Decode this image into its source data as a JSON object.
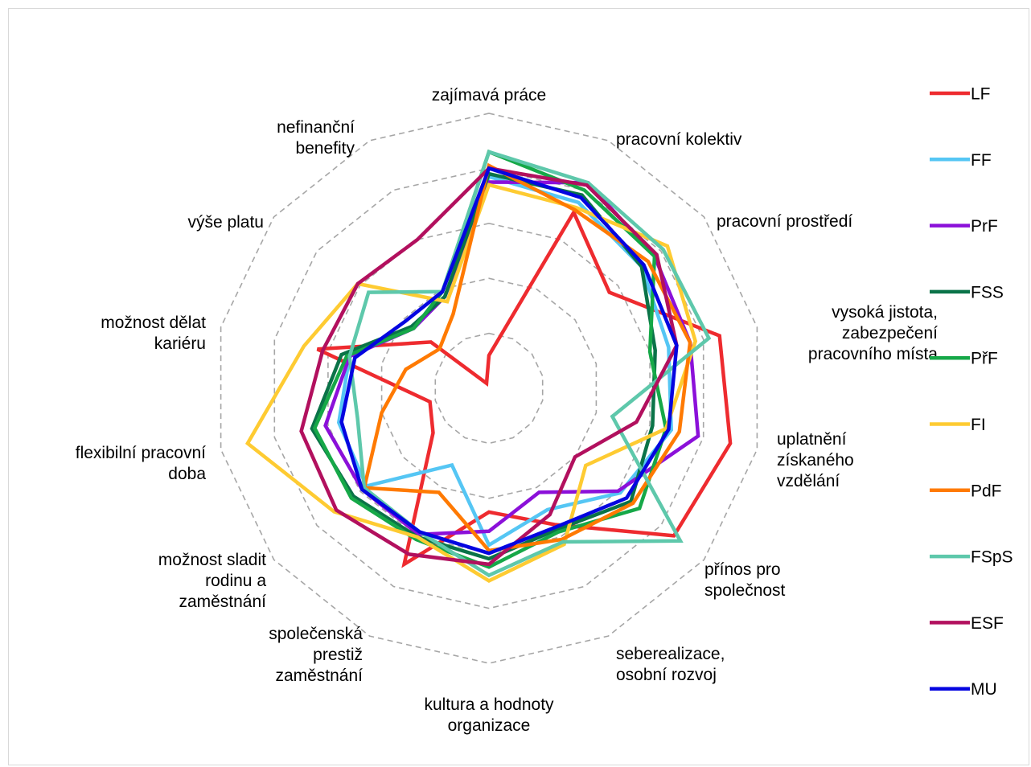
{
  "chart_data": {
    "type": "radar",
    "axes": [
      [
        "zajímavá práce"
      ],
      [
        "pracovní kolektiv"
      ],
      [
        "pracovní prostředí"
      ],
      [
        "vysoká jistota,",
        "zabezpečení",
        "pracovního místa"
      ],
      [
        "uplatnění",
        "získaného",
        "vzdělání"
      ],
      [
        "přínos pro",
        "společnost"
      ],
      [
        "seberealizace,",
        "osobní rozvoj"
      ],
      [
        "kultura a hodnoty",
        "organizace"
      ],
      [
        "společenská",
        "prestiž",
        "zaměstnání"
      ],
      [
        "možnost sladit",
        "rodinu a",
        "zaměstnání"
      ],
      [
        "flexibilní pracovní",
        "doba"
      ],
      [
        "možnost dělat",
        "kariéru"
      ],
      [
        "výše platu"
      ],
      [
        "nefinanční",
        "benefity"
      ]
    ],
    "rmax": 5,
    "grid_levels": [
      1,
      2,
      3,
      4,
      5
    ],
    "grid_style": "dashed",
    "legend_position": "right",
    "series": [
      {
        "name": "LF",
        "color": "#ee2b2f",
        "values": [
          0.6,
          3.55,
          2.8,
          4.3,
          4.5,
          4.3,
          2.75,
          2.25,
          3.55,
          1.3,
          1.1,
          3.2,
          1.35,
          0.1
        ]
      },
      {
        "name": "FF",
        "color": "#55c6f4",
        "values": [
          3.85,
          3.75,
          3.55,
          3.35,
          3.4,
          3.05,
          2.45,
          2.85,
          1.55,
          2.85,
          2.8,
          2.6,
          1.8,
          1.85
        ]
      },
      {
        "name": "PrF",
        "color": "#8b10d9",
        "values": [
          3.75,
          4.15,
          3.85,
          3.75,
          3.9,
          3.0,
          2.1,
          2.6,
          2.95,
          2.95,
          3.05,
          2.6,
          1.75,
          1.85
        ]
      },
      {
        "name": "FSS",
        "color": "#0a7348",
        "values": [
          3.9,
          3.9,
          3.55,
          3.1,
          3.05,
          3.3,
          2.85,
          3.1,
          3.0,
          3.15,
          3.3,
          2.75,
          1.8,
          1.85
        ]
      },
      {
        "name": "PřF",
        "color": "#16a848",
        "values": [
          4.3,
          4.0,
          3.85,
          3.0,
          3.3,
          3.5,
          2.9,
          3.25,
          3.05,
          3.2,
          3.25,
          2.65,
          1.75,
          1.95
        ]
      },
      {
        "name": "FI",
        "color": "#fecb32",
        "values": [
          3.7,
          3.65,
          4.15,
          3.85,
          3.3,
          2.25,
          3.15,
          3.5,
          3.0,
          3.6,
          4.5,
          3.45,
          3.05,
          1.75
        ]
      },
      {
        "name": "PdF",
        "color": "#ff7a02",
        "values": [
          4.05,
          3.6,
          3.7,
          3.75,
          3.55,
          3.35,
          3.05,
          2.95,
          2.1,
          2.9,
          2.0,
          1.55,
          1.15,
          1.5
        ]
      },
      {
        "name": "FSpS",
        "color": "#5ec8ab",
        "values": [
          4.3,
          4.15,
          4.05,
          4.1,
          2.3,
          4.45,
          3.1,
          3.4,
          2.9,
          2.9,
          2.45,
          2.6,
          2.8,
          1.95
        ]
      },
      {
        "name": "ESF",
        "color": "#b2105e",
        "values": [
          4.0,
          4.1,
          3.9,
          3.5,
          2.75,
          2.0,
          2.55,
          3.2,
          3.35,
          3.55,
          3.5,
          3.1,
          3.05,
          3.0
        ]
      },
      {
        "name": "MU",
        "color": "#0505e0",
        "values": [
          4.0,
          3.85,
          3.6,
          3.5,
          3.35,
          3.2,
          2.8,
          3.0,
          2.9,
          2.95,
          2.75,
          2.5,
          1.95,
          1.95
        ]
      }
    ]
  }
}
